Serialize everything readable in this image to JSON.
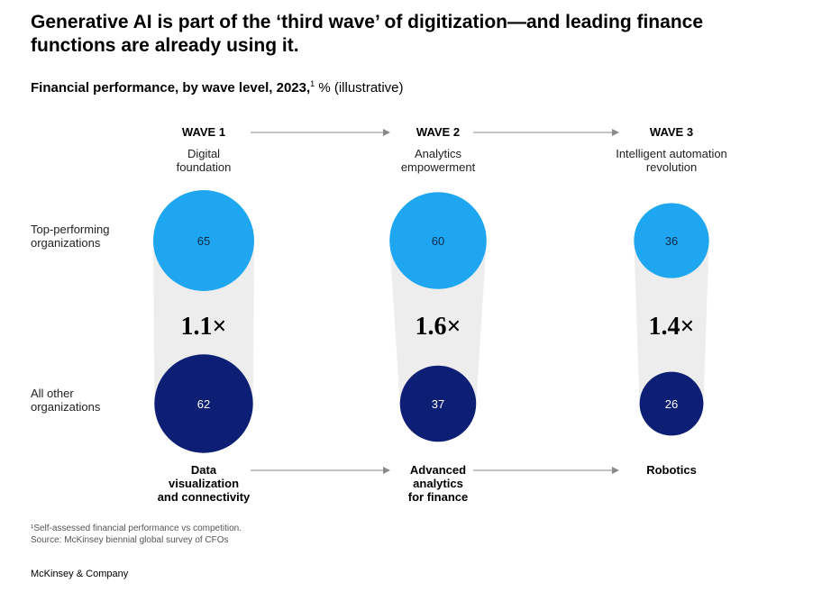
{
  "title_lines": [
    "Generative AI is part of the ‘third wave’ of digitization—and leading finance",
    "functions are already using it."
  ],
  "subtitle_bold": "Financial performance, by wave level, 2023,",
  "subtitle_sup": "1",
  "subtitle_rest": " % (illustrative)",
  "row_labels": {
    "top": [
      "Top-performing",
      "organizations"
    ],
    "other": [
      "All other",
      "organizations"
    ]
  },
  "colors": {
    "top": "#1ea7f0",
    "other": "#0c1f74",
    "connector": "#ededed",
    "arrow": "#8a8a8a"
  },
  "chart_data": {
    "type": "bubble",
    "series": [
      {
        "name": "Top-performing organizations",
        "values": [
          65,
          60,
          36
        ]
      },
      {
        "name": "All other organizations",
        "values": [
          62,
          37,
          26
        ]
      }
    ],
    "waves": [
      {
        "name": "WAVE 1",
        "desc": [
          "Digital",
          "foundation"
        ],
        "ratio": "1.1×",
        "capability": [
          "Data",
          "visualization",
          "and connectivity"
        ]
      },
      {
        "name": "WAVE 2",
        "desc": [
          "Analytics",
          "empowerment"
        ],
        "ratio": "1.6×",
        "capability": [
          "Advanced",
          "analytics",
          "for finance"
        ]
      },
      {
        "name": "WAVE 3",
        "desc": [
          "Intelligent automation",
          "revolution"
        ],
        "ratio": "1.4×",
        "capability": [
          "Robotics"
        ]
      }
    ]
  },
  "footnote_lines": [
    "¹Self-assessed financial performance vs competition.",
    " Source: McKinsey biennial global survey of CFOs"
  ],
  "brand": "McKinsey & Company"
}
